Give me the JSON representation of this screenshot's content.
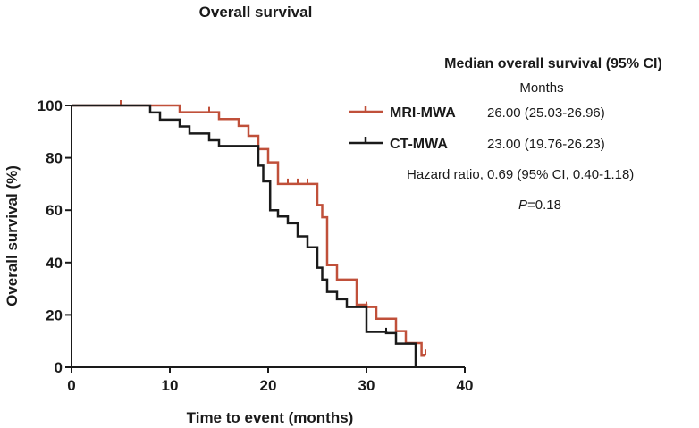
{
  "chart_data": {
    "type": "line",
    "step": true,
    "title": "Overall survival",
    "xlabel": "Time to event (months)",
    "ylabel": "Overall survival (%)",
    "xlim": [
      0,
      40
    ],
    "ylim": [
      0,
      100
    ],
    "xticks": [
      0,
      10,
      20,
      30,
      40
    ],
    "yticks": [
      0,
      20,
      40,
      60,
      80,
      100
    ],
    "grid": false,
    "legend": {
      "position": "top-right",
      "header": "Median overall survival (95% CI)",
      "subheader": "Months"
    },
    "series": [
      {
        "name": "MRI-MWA",
        "color": "#c0503a",
        "median_label": "26.00 (25.03-26.96)",
        "steps": [
          [
            0,
            100
          ],
          [
            11,
            97.4
          ],
          [
            15,
            94.8
          ],
          [
            17,
            92.2
          ],
          [
            18,
            88.4
          ],
          [
            19,
            83.3
          ],
          [
            20,
            78.3
          ],
          [
            21,
            70
          ],
          [
            25,
            62
          ],
          [
            25.5,
            57.3
          ],
          [
            26,
            39
          ],
          [
            27,
            33.5
          ],
          [
            29,
            23.9
          ],
          [
            30,
            23
          ],
          [
            31,
            18.5
          ],
          [
            33,
            13.8
          ],
          [
            34,
            9.2
          ],
          [
            35.6,
            4.7
          ]
        ],
        "end_x": 36,
        "censored": [
          [
            5,
            100
          ],
          [
            14,
            97.4
          ],
          [
            22,
            70
          ],
          [
            23,
            70
          ],
          [
            24,
            70
          ],
          [
            30,
            23
          ],
          [
            36,
            4.7
          ]
        ]
      },
      {
        "name": "CT-MWA",
        "color": "#1a1a1a",
        "steps": [
          [
            0,
            100
          ],
          [
            8,
            97.3
          ],
          [
            9,
            94.6
          ],
          [
            11,
            92
          ],
          [
            12,
            89.3
          ],
          [
            14,
            86.7
          ],
          [
            15,
            84.5
          ],
          [
            19,
            77
          ],
          [
            19.5,
            71
          ],
          [
            20.2,
            60
          ],
          [
            21,
            57.6
          ],
          [
            22,
            55
          ],
          [
            23,
            50
          ],
          [
            24,
            45.8
          ],
          [
            25,
            38
          ],
          [
            25.5,
            33.5
          ],
          [
            26,
            28.8
          ],
          [
            27,
            26
          ],
          [
            28,
            23
          ],
          [
            30,
            13.5
          ],
          [
            32,
            13
          ],
          [
            33,
            9
          ],
          [
            35,
            0
          ]
        ],
        "end_x": 35,
        "median_label": "23.00 (19.76-26.23)",
        "censored": [
          [
            32,
            13
          ]
        ]
      }
    ],
    "annotations": {
      "hazard_ratio": "Hazard ratio, 0.69 (95% CI, 0.40-1.18)",
      "p_label": "P",
      "p_value": "=0.18"
    }
  }
}
